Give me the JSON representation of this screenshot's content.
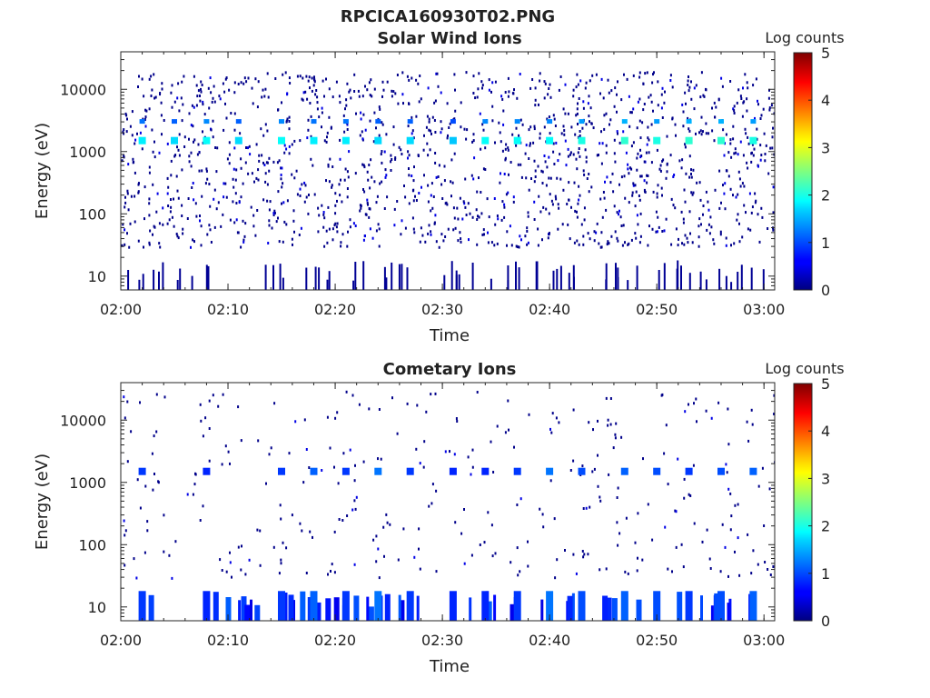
{
  "figure": {
    "title": "RPCICA160930T02.PNG"
  },
  "chart_data": [
    {
      "type": "heatmap",
      "title": "Solar Wind Ions",
      "xlabel": "Time",
      "ylabel": "Energy (eV)",
      "yscale": "log",
      "xlim": [
        "02:00",
        "03:01"
      ],
      "ylim": [
        6,
        40000
      ],
      "x_ticks": [
        "02:00",
        "02:10",
        "02:20",
        "02:30",
        "02:40",
        "02:50",
        "03:00"
      ],
      "y_ticks": [
        10,
        100,
        1000,
        10000
      ],
      "y_tick_labels": [
        "10",
        "100",
        "1000",
        "10000"
      ],
      "colorbar": {
        "label": "Log counts",
        "min": 0,
        "max": 5,
        "ticks": [
          "0",
          "1",
          "2",
          "3",
          "4",
          "5"
        ]
      },
      "bursts": [
        {
          "time": "02:02",
          "energy_eV": 1500,
          "log_counts": 1.8
        },
        {
          "time": "02:05",
          "energy_eV": 1500,
          "log_counts": 1.7
        },
        {
          "time": "02:08",
          "energy_eV": 1500,
          "log_counts": 1.9
        },
        {
          "time": "02:11",
          "energy_eV": 1500,
          "log_counts": 1.7
        },
        {
          "time": "02:15",
          "energy_eV": 1500,
          "log_counts": 1.9
        },
        {
          "time": "02:18",
          "energy_eV": 1500,
          "log_counts": 1.8
        },
        {
          "time": "02:21",
          "energy_eV": 1500,
          "log_counts": 1.8
        },
        {
          "time": "02:24",
          "energy_eV": 1500,
          "log_counts": 1.7
        },
        {
          "time": "02:27",
          "energy_eV": 1500,
          "log_counts": 1.7
        },
        {
          "time": "02:31",
          "energy_eV": 1500,
          "log_counts": 1.6
        },
        {
          "time": "02:34",
          "energy_eV": 1500,
          "log_counts": 1.9
        },
        {
          "time": "02:37",
          "energy_eV": 1500,
          "log_counts": 1.9
        },
        {
          "time": "02:40",
          "energy_eV": 1500,
          "log_counts": 1.9
        },
        {
          "time": "02:43",
          "energy_eV": 1500,
          "log_counts": 2.0
        },
        {
          "time": "02:47",
          "energy_eV": 1500,
          "log_counts": 2.1
        },
        {
          "time": "02:50",
          "energy_eV": 1500,
          "log_counts": 2.0
        },
        {
          "time": "02:53",
          "energy_eV": 1500,
          "log_counts": 2.1
        },
        {
          "time": "02:56",
          "energy_eV": 1500,
          "log_counts": 2.1
        },
        {
          "time": "02:59",
          "energy_eV": 1500,
          "log_counts": 2.0
        }
      ],
      "background": {
        "scatter_density": "high",
        "low_energy_streaks": "moderate",
        "log_counts_typical": 0.2
      }
    },
    {
      "type": "heatmap",
      "title": "Cometary Ions",
      "xlabel": "Time",
      "ylabel": "Energy (eV)",
      "yscale": "log",
      "xlim": [
        "02:00",
        "03:01"
      ],
      "ylim": [
        6,
        40000
      ],
      "x_ticks": [
        "02:00",
        "02:10",
        "02:20",
        "02:30",
        "02:40",
        "02:50",
        "03:00"
      ],
      "y_ticks": [
        10,
        100,
        1000,
        10000
      ],
      "y_tick_labels": [
        "10",
        "100",
        "1000",
        "10000"
      ],
      "colorbar": {
        "label": "Log counts",
        "min": 0,
        "max": 5,
        "ticks": [
          "0",
          "1",
          "2",
          "3",
          "4",
          "5"
        ]
      },
      "bursts": [
        {
          "time": "02:02",
          "energy_eV": 1500,
          "log_counts": 0.9
        },
        {
          "time": "02:08",
          "energy_eV": 1500,
          "log_counts": 0.8
        },
        {
          "time": "02:15",
          "energy_eV": 1500,
          "log_counts": 0.9
        },
        {
          "time": "02:18",
          "energy_eV": 1500,
          "log_counts": 1.1
        },
        {
          "time": "02:21",
          "energy_eV": 1500,
          "log_counts": 0.9
        },
        {
          "time": "02:24",
          "energy_eV": 1500,
          "log_counts": 1.2
        },
        {
          "time": "02:27",
          "energy_eV": 1500,
          "log_counts": 0.9
        },
        {
          "time": "02:31",
          "energy_eV": 1500,
          "log_counts": 0.8
        },
        {
          "time": "02:34",
          "energy_eV": 1500,
          "log_counts": 0.8
        },
        {
          "time": "02:37",
          "energy_eV": 1500,
          "log_counts": 0.9
        },
        {
          "time": "02:40",
          "energy_eV": 1500,
          "log_counts": 1.2
        },
        {
          "time": "02:43",
          "energy_eV": 1500,
          "log_counts": 1.0
        },
        {
          "time": "02:47",
          "energy_eV": 1500,
          "log_counts": 1.1
        },
        {
          "time": "02:50",
          "energy_eV": 1500,
          "log_counts": 1.0
        },
        {
          "time": "02:53",
          "energy_eV": 1500,
          "log_counts": 0.9
        },
        {
          "time": "02:56",
          "energy_eV": 1500,
          "log_counts": 1.0
        },
        {
          "time": "02:59",
          "energy_eV": 1500,
          "log_counts": 1.1
        }
      ],
      "background": {
        "scatter_density": "low",
        "low_energy_streaks": "strong",
        "log_counts_typical": 0.6
      }
    }
  ]
}
